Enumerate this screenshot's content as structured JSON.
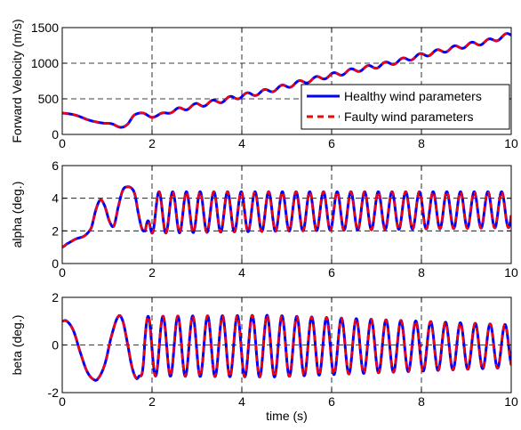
{
  "colors": {
    "healthy": "#0000ff",
    "faulty": "#ff0000",
    "grid": "#000000",
    "axes": "#000000"
  },
  "legend": {
    "placement": "bottom-right",
    "entries": [
      "Healthy wind parameters",
      "Faulty wind parameters"
    ]
  },
  "chart_data": [
    {
      "type": "line",
      "ylabel": "Forward Velocity (m/s)",
      "xlabel": "",
      "xlim": [
        0,
        10
      ],
      "ylim": [
        0,
        1500
      ],
      "xticks": [
        "0",
        "2",
        "4",
        "6",
        "8",
        "10"
      ],
      "yticks": [
        "0",
        "500",
        "1000",
        "1500"
      ],
      "grid": true,
      "series": [
        {
          "name": "Healthy wind parameters",
          "style": "solid",
          "x": [
            0,
            0.3,
            0.6,
            0.9,
            1.1,
            1.3,
            1.45,
            1.6,
            1.8,
            2.0,
            2.2,
            2.5,
            2.8,
            3.0,
            3.5,
            4.0,
            4.5,
            5.0,
            5.5,
            6.0,
            6.5,
            7.0,
            7.5,
            8.0,
            8.5,
            9.0,
            9.5,
            10.0
          ],
          "y": [
            300,
            270,
            200,
            160,
            150,
            100,
            140,
            270,
            300,
            240,
            290,
            330,
            380,
            410,
            470,
            540,
            600,
            680,
            760,
            830,
            900,
            960,
            1030,
            1110,
            1180,
            1250,
            1310,
            1400
          ],
          "osc_amp": 30
        },
        {
          "name": "Faulty wind parameters",
          "style": "dashed",
          "x": [
            0,
            0.3,
            0.6,
            0.9,
            1.1,
            1.3,
            1.45,
            1.6,
            1.8,
            2.0,
            2.2,
            2.5,
            2.8,
            3.0,
            3.5,
            4.0,
            4.5,
            5.0,
            5.5,
            6.0,
            6.5,
            7.0,
            7.5,
            8.0,
            8.5,
            9.0,
            9.5,
            10.0
          ],
          "y": [
            300,
            270,
            200,
            160,
            150,
            100,
            140,
            270,
            300,
            240,
            290,
            330,
            380,
            410,
            470,
            540,
            600,
            680,
            760,
            830,
            900,
            960,
            1030,
            1110,
            1180,
            1250,
            1310,
            1400
          ],
          "osc_amp": 30
        }
      ]
    },
    {
      "type": "line",
      "ylabel": "alpha (deg.)",
      "xlabel": "",
      "xlim": [
        0,
        10
      ],
      "ylim": [
        0,
        6
      ],
      "xticks": [
        "0",
        "2",
        "4",
        "6",
        "8",
        "10"
      ],
      "yticks": [
        "0",
        "2",
        "4",
        "6"
      ],
      "grid": true,
      "transient": {
        "x": [
          0,
          0.1,
          0.3,
          0.5,
          0.65,
          0.75,
          0.85,
          0.95,
          1.05,
          1.15,
          1.25,
          1.35,
          1.45,
          1.55,
          1.62,
          1.7,
          1.78,
          1.85
        ],
        "y": [
          1.0,
          1.2,
          1.5,
          1.7,
          2.2,
          3.3,
          3.9,
          3.5,
          2.6,
          2.3,
          3.5,
          4.5,
          4.7,
          4.6,
          4.2,
          3.0,
          2.1,
          2.0
        ]
      },
      "oscillation": {
        "t_start": 1.85,
        "t_end": 10.0,
        "cycles": 26.7,
        "phase": 1.5708,
        "mean": 3.12,
        "amp_start": 1.28,
        "amp_end": 0.95,
        "min_start": 1.85,
        "min_end": 2.2
      },
      "series": [
        {
          "name": "Healthy wind parameters",
          "style": "solid",
          "phase_offset": 0.0
        },
        {
          "name": "Faulty wind parameters",
          "style": "dashed",
          "phase_offset": 0.06
        }
      ]
    },
    {
      "type": "line",
      "ylabel": "beta (deg.)",
      "xlabel": "time (s)",
      "xlim": [
        0,
        10
      ],
      "ylim": [
        -2,
        2
      ],
      "xticks": [
        "0",
        "2",
        "4",
        "6",
        "8",
        "10"
      ],
      "yticks": [
        "-2",
        "0",
        "2"
      ],
      "grid": true,
      "transient": {
        "x": [
          0,
          0.1,
          0.25,
          0.4,
          0.55,
          0.7,
          0.8,
          0.95,
          1.1,
          1.25,
          1.35,
          1.45,
          1.55,
          1.65,
          1.72
        ],
        "y": [
          1.0,
          1.0,
          0.6,
          -0.3,
          -1.1,
          -1.45,
          -1.4,
          -0.8,
          0.4,
          1.2,
          1.0,
          0.1,
          -0.9,
          -1.4,
          -1.3
        ]
      },
      "oscillation": {
        "t_start": 1.72,
        "t_end": 10.0,
        "cycles": 25.0,
        "phase": 4.2,
        "mean": -0.05,
        "amp_start": 1.25,
        "amp_peak": 1.3,
        "amp_end": 0.9
      },
      "series": [
        {
          "name": "Healthy wind parameters",
          "style": "solid",
          "phase_offset": 0.0
        },
        {
          "name": "Faulty wind parameters",
          "style": "dashed",
          "phase_offset": 0.07
        }
      ]
    }
  ]
}
